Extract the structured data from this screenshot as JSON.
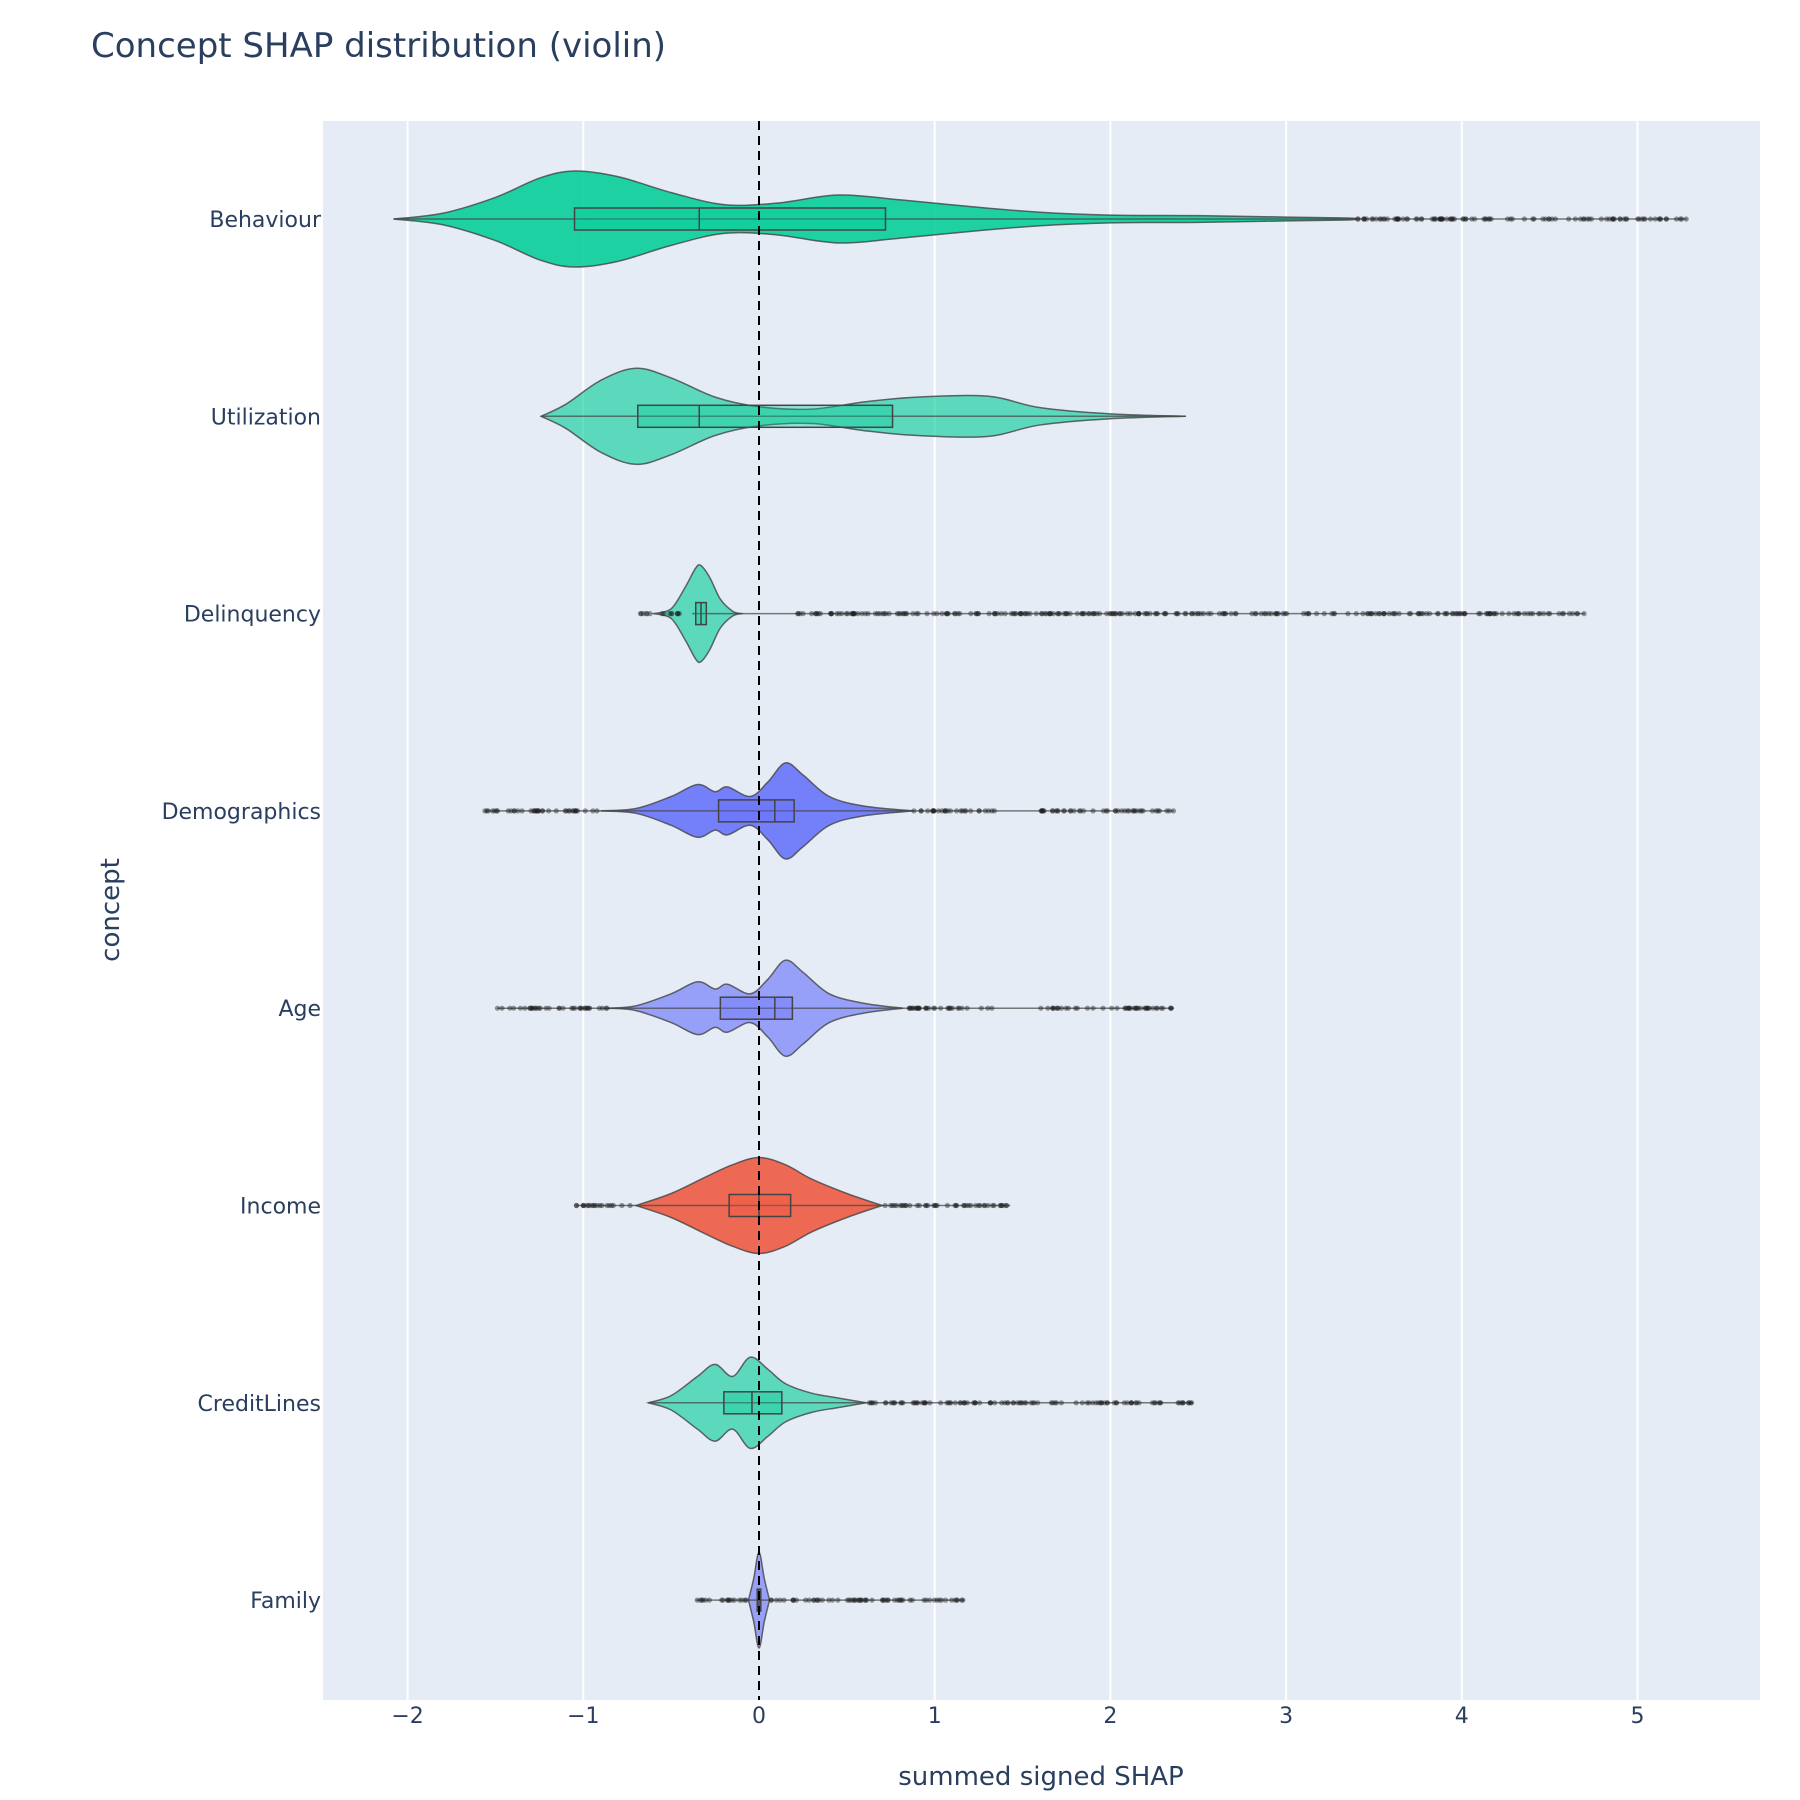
{
  "chart_data": {
    "type": "violin",
    "title": "Concept SHAP distribution (violin)",
    "xlabel": "summed signed SHAP",
    "ylabel": "concept",
    "xlim": [
      -2.48,
      5.7
    ],
    "x_ticks": [
      -2,
      -1,
      0,
      1,
      2,
      3,
      4,
      5
    ],
    "x_tick_labels": [
      "−2",
      "−1",
      "0",
      "1",
      "2",
      "3",
      "4",
      "5"
    ],
    "reference_line": {
      "x": 0,
      "style": "dashed",
      "color": "#000000"
    },
    "grid": true,
    "background_color": "#e5ecf6",
    "categories": [
      "Behaviour",
      "Utilization",
      "Delinquency",
      "Demographics",
      "Age",
      "Income",
      "CreditLines",
      "Family"
    ],
    "series": [
      {
        "name": "Behaviour",
        "color": "#00cc96",
        "opacity": 0.87,
        "min": -2.08,
        "q1": -1.05,
        "median": -0.34,
        "q3": 0.72,
        "upper_fence": 3.35,
        "max": 5.28,
        "density": [
          [
            -2.08,
            0.0
          ],
          [
            -1.8,
            0.12
          ],
          [
            -1.5,
            0.45
          ],
          [
            -1.25,
            0.85
          ],
          [
            -1.05,
            1.0
          ],
          [
            -0.8,
            0.88
          ],
          [
            -0.5,
            0.55
          ],
          [
            -0.2,
            0.3
          ],
          [
            0.1,
            0.33
          ],
          [
            0.45,
            0.5
          ],
          [
            0.8,
            0.4
          ],
          [
            1.2,
            0.26
          ],
          [
            1.6,
            0.14
          ],
          [
            2.0,
            0.08
          ],
          [
            2.5,
            0.07
          ],
          [
            3.0,
            0.04
          ],
          [
            3.35,
            0.02
          ],
          [
            3.4,
            0.0
          ]
        ],
        "outliers": [
          [
            3.35,
            4.55
          ],
          [
            4.6,
            4.95
          ],
          [
            5.0,
            5.28
          ]
        ]
      },
      {
        "name": "Utilization",
        "color": "#00cc96",
        "opacity": 0.6,
        "min": -1.24,
        "q1": -0.69,
        "median": -0.34,
        "q3": 0.76,
        "upper_fence": 2.43,
        "max": 2.43,
        "density": [
          [
            -1.24,
            0.0
          ],
          [
            -1.1,
            0.25
          ],
          [
            -0.9,
            0.75
          ],
          [
            -0.7,
            1.0
          ],
          [
            -0.5,
            0.8
          ],
          [
            -0.25,
            0.4
          ],
          [
            0.0,
            0.2
          ],
          [
            0.3,
            0.15
          ],
          [
            0.6,
            0.3
          ],
          [
            0.9,
            0.4
          ],
          [
            1.3,
            0.42
          ],
          [
            1.6,
            0.18
          ],
          [
            2.0,
            0.05
          ],
          [
            2.43,
            0.0
          ]
        ],
        "outliers": []
      },
      {
        "name": "Delinquency",
        "color": "#00cc96",
        "opacity": 0.6,
        "min": -0.38,
        "q1": -0.36,
        "median": -0.33,
        "q3": -0.3,
        "upper_fence": -0.15,
        "max": 4.7,
        "density": [
          [
            -0.6,
            0.0
          ],
          [
            -0.5,
            0.1
          ],
          [
            -0.42,
            0.55
          ],
          [
            -0.36,
            0.95
          ],
          [
            -0.33,
            1.0
          ],
          [
            -0.28,
            0.75
          ],
          [
            -0.22,
            0.3
          ],
          [
            -0.15,
            0.05
          ],
          [
            -0.1,
            0.0
          ]
        ],
        "outliers": [
          [
            -0.68,
            -0.42
          ],
          [
            0.22,
            3.9
          ],
          [
            3.9,
            4.7
          ]
        ]
      },
      {
        "name": "Demographics",
        "color": "#636efa",
        "opacity": 0.87,
        "min": -1.56,
        "q1": -0.23,
        "median": 0.09,
        "q3": 0.2,
        "upper_fence": 0.88,
        "max": 2.36,
        "density": [
          [
            -0.9,
            0.0
          ],
          [
            -0.7,
            0.05
          ],
          [
            -0.5,
            0.3
          ],
          [
            -0.35,
            0.55
          ],
          [
            -0.25,
            0.4
          ],
          [
            -0.18,
            0.5
          ],
          [
            -0.05,
            0.3
          ],
          [
            0.05,
            0.6
          ],
          [
            0.15,
            1.0
          ],
          [
            0.25,
            0.75
          ],
          [
            0.4,
            0.3
          ],
          [
            0.6,
            0.1
          ],
          [
            0.88,
            0.0
          ]
        ],
        "outliers": [
          [
            -1.56,
            -0.9
          ],
          [
            0.88,
            1.35
          ],
          [
            1.6,
            2.36
          ]
        ]
      },
      {
        "name": "Age",
        "color": "#636efa",
        "opacity": 0.6,
        "min": -1.49,
        "q1": -0.22,
        "median": 0.09,
        "q3": 0.19,
        "upper_fence": 0.82,
        "max": 2.36,
        "density": [
          [
            -0.86,
            0.0
          ],
          [
            -0.7,
            0.05
          ],
          [
            -0.5,
            0.3
          ],
          [
            -0.35,
            0.55
          ],
          [
            -0.25,
            0.4
          ],
          [
            -0.18,
            0.5
          ],
          [
            -0.05,
            0.3
          ],
          [
            0.05,
            0.6
          ],
          [
            0.15,
            1.0
          ],
          [
            0.25,
            0.75
          ],
          [
            0.4,
            0.3
          ],
          [
            0.6,
            0.1
          ],
          [
            0.82,
            0.0
          ]
        ],
        "outliers": [
          [
            -1.49,
            -0.86
          ],
          [
            0.82,
            1.35
          ],
          [
            1.6,
            2.36
          ]
        ]
      },
      {
        "name": "Income",
        "color": "#ef553b",
        "opacity": 0.87,
        "min": -1.04,
        "q1": -0.17,
        "median": 0.0,
        "q3": 0.18,
        "upper_fence": 0.7,
        "max": 1.43,
        "density": [
          [
            -0.7,
            0.0
          ],
          [
            -0.5,
            0.25
          ],
          [
            -0.3,
            0.6
          ],
          [
            -0.15,
            0.85
          ],
          [
            0.0,
            1.0
          ],
          [
            0.15,
            0.85
          ],
          [
            0.3,
            0.55
          ],
          [
            0.5,
            0.25
          ],
          [
            0.7,
            0.0
          ]
        ],
        "outliers": [
          [
            -1.04,
            -0.7
          ],
          [
            0.7,
            1.43
          ]
        ]
      },
      {
        "name": "CreditLines",
        "color": "#00cc96",
        "opacity": 0.6,
        "min": -0.63,
        "q1": -0.2,
        "median": -0.04,
        "q3": 0.13,
        "upper_fence": 0.61,
        "max": 2.47,
        "density": [
          [
            -0.63,
            0.0
          ],
          [
            -0.5,
            0.15
          ],
          [
            -0.35,
            0.55
          ],
          [
            -0.25,
            0.8
          ],
          [
            -0.15,
            0.55
          ],
          [
            -0.05,
            0.95
          ],
          [
            0.05,
            0.7
          ],
          [
            0.15,
            0.4
          ],
          [
            0.3,
            0.2
          ],
          [
            0.45,
            0.1
          ],
          [
            0.61,
            0.0
          ]
        ],
        "outliers": [
          [
            0.61,
            1.75
          ],
          [
            1.8,
            2.47
          ]
        ]
      },
      {
        "name": "Family",
        "color": "#636efa",
        "opacity": 0.6,
        "min": -0.36,
        "q1": -0.01,
        "median": 0.0,
        "q3": 0.01,
        "upper_fence": 0.05,
        "max": 1.17,
        "density": [
          [
            -0.06,
            0.0
          ],
          [
            -0.03,
            0.45
          ],
          [
            0.0,
            1.0
          ],
          [
            0.03,
            0.45
          ],
          [
            0.06,
            0.0
          ]
        ],
        "outliers": [
          [
            -0.36,
            -0.06
          ],
          [
            0.06,
            0.65
          ],
          [
            0.7,
            1.17
          ]
        ]
      }
    ]
  }
}
